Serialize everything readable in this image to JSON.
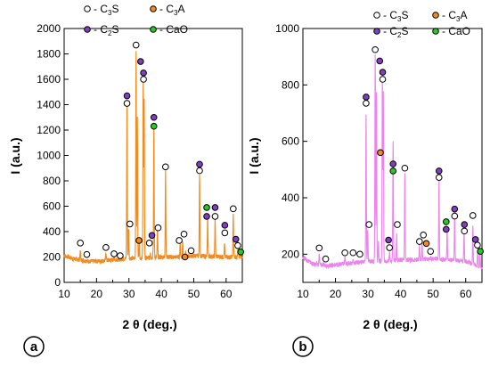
{
  "colors": {
    "panel_a_line": "#F28A1E",
    "panel_b_line": "#EE82EE",
    "C3S": "#ffffff",
    "C3A": "#F28A1E",
    "C2S": "#7F3FBF",
    "CaO": "#22CC22"
  },
  "legend": [
    {
      "key": "C3S",
      "main": "- C",
      "sub": "3",
      "tail": "S"
    },
    {
      "key": "C3A",
      "main": "- C",
      "sub": "3",
      "tail": "A"
    },
    {
      "key": "C2S",
      "main": "- C",
      "sub": "2",
      "tail": "S"
    },
    {
      "key": "CaO",
      "main": "- CaO",
      "sub": "",
      "tail": ""
    }
  ],
  "chart_data": [
    {
      "type": "line",
      "panel_label": "a",
      "xlabel": "2 θ (deg.)",
      "ylabel": "I (a.u.)",
      "xlim": [
        10,
        65
      ],
      "ylim": [
        0,
        2000
      ],
      "xticks": [
        10,
        20,
        30,
        40,
        50,
        60
      ],
      "yticks": [
        0,
        200,
        400,
        600,
        800,
        1000,
        1200,
        1400,
        1600,
        1800,
        2000
      ],
      "baseline": [
        [
          10,
          210
        ],
        [
          13,
          185
        ],
        [
          18,
          165
        ],
        [
          22,
          170
        ],
        [
          26,
          180
        ],
        [
          30,
          190
        ],
        [
          35,
          190
        ],
        [
          40,
          200
        ],
        [
          45,
          200
        ],
        [
          50,
          210
        ],
        [
          55,
          205
        ],
        [
          60,
          200
        ],
        [
          65,
          200
        ]
      ],
      "peaks": [
        [
          15.0,
          250
        ],
        [
          22.9,
          240
        ],
        [
          25.4,
          220
        ],
        [
          29.4,
          1400
        ],
        [
          29.9,
          430
        ],
        [
          32.2,
          1840
        ],
        [
          32.6,
          1300
        ],
        [
          33.2,
          330
        ],
        [
          34.4,
          1600
        ],
        [
          34.7,
          1450
        ],
        [
          36.6,
          240
        ],
        [
          37.4,
          240
        ],
        [
          37.7,
          1240
        ],
        [
          38.8,
          420
        ],
        [
          41.3,
          880
        ],
        [
          45.8,
          310
        ],
        [
          46.6,
          330
        ],
        [
          47.5,
          230
        ],
        [
          51.8,
          860
        ],
        [
          54.3,
          520
        ],
        [
          56.6,
          500
        ],
        [
          59.5,
          300
        ],
        [
          62.2,
          530
        ],
        [
          63.7,
          280
        ],
        [
          64.4,
          230
        ]
      ],
      "markers": [
        {
          "phase": "C3S",
          "x": 15.0,
          "y": 310
        },
        {
          "phase": "C3S",
          "x": 17.0,
          "y": 220
        },
        {
          "phase": "C3S",
          "x": 22.9,
          "y": 275
        },
        {
          "phase": "C3S",
          "x": 25.4,
          "y": 225
        },
        {
          "phase": "C3S",
          "x": 27.3,
          "y": 210
        },
        {
          "phase": "C2S",
          "x": 29.4,
          "y": 1470
        },
        {
          "phase": "C3S",
          "x": 29.4,
          "y": 1410
        },
        {
          "phase": "C3S",
          "x": 30.3,
          "y": 460
        },
        {
          "phase": "C3S",
          "x": 32.2,
          "y": 1870
        },
        {
          "phase": "C3A",
          "x": 33.1,
          "y": 330
        },
        {
          "phase": "C2S",
          "x": 33.6,
          "y": 1740
        },
        {
          "phase": "C2S",
          "x": 34.5,
          "y": 1650
        },
        {
          "phase": "C3S",
          "x": 34.5,
          "y": 1600
        },
        {
          "phase": "C3S",
          "x": 36.3,
          "y": 310
        },
        {
          "phase": "C2S",
          "x": 37.1,
          "y": 370
        },
        {
          "phase": "C2S",
          "x": 37.7,
          "y": 1300
        },
        {
          "phase": "CaO",
          "x": 37.7,
          "y": 1230
        },
        {
          "phase": "C3S",
          "x": 39.0,
          "y": 430
        },
        {
          "phase": "C3S",
          "x": 41.3,
          "y": 910
        },
        {
          "phase": "C3S",
          "x": 45.5,
          "y": 330
        },
        {
          "phase": "C3S",
          "x": 47.0,
          "y": 380
        },
        {
          "phase": "C3A",
          "x": 47.3,
          "y": 200
        },
        {
          "phase": "C3S",
          "x": 49.2,
          "y": 250
        },
        {
          "phase": "C2S",
          "x": 51.8,
          "y": 930
        },
        {
          "phase": "C3S",
          "x": 51.8,
          "y": 880
        },
        {
          "phase": "CaO",
          "x": 54.0,
          "y": 590
        },
        {
          "phase": "C2S",
          "x": 54.0,
          "y": 520
        },
        {
          "phase": "C2S",
          "x": 56.6,
          "y": 590
        },
        {
          "phase": "C3S",
          "x": 56.6,
          "y": 520
        },
        {
          "phase": "C2S",
          "x": 59.6,
          "y": 450
        },
        {
          "phase": "C3S",
          "x": 59.6,
          "y": 390
        },
        {
          "phase": "C3S",
          "x": 62.2,
          "y": 580
        },
        {
          "phase": "C2S",
          "x": 63.0,
          "y": 340
        },
        {
          "phase": "C3S",
          "x": 63.6,
          "y": 290
        },
        {
          "phase": "CaO",
          "x": 64.5,
          "y": 240
        }
      ]
    },
    {
      "type": "line",
      "panel_label": "b",
      "xlabel": "2 θ (deg.)",
      "ylabel": "I (a.u.)",
      "xlim": [
        10,
        65
      ],
      "ylim": [
        100,
        1000
      ],
      "xticks": [
        10,
        20,
        30,
        40,
        50,
        60
      ],
      "yticks": [
        200,
        400,
        600,
        800,
        1000
      ],
      "baseline": [
        [
          10,
          190
        ],
        [
          13,
          165
        ],
        [
          18,
          160
        ],
        [
          22,
          165
        ],
        [
          26,
          170
        ],
        [
          30,
          175
        ],
        [
          35,
          175
        ],
        [
          40,
          180
        ],
        [
          45,
          180
        ],
        [
          50,
          185
        ],
        [
          55,
          180
        ],
        [
          60,
          175
        ],
        [
          65,
          150
        ]
      ],
      "peaks": [
        [
          15.0,
          200
        ],
        [
          22.9,
          190
        ],
        [
          25.4,
          180
        ],
        [
          29.4,
          700
        ],
        [
          29.9,
          280
        ],
        [
          32.2,
          910
        ],
        [
          32.6,
          780
        ],
        [
          33.2,
          240
        ],
        [
          34.4,
          820
        ],
        [
          34.7,
          770
        ],
        [
          36.6,
          210
        ],
        [
          37.7,
          600
        ],
        [
          38.8,
          270
        ],
        [
          41.3,
          480
        ],
        [
          45.8,
          230
        ],
        [
          46.6,
          240
        ],
        [
          51.8,
          460
        ],
        [
          54.3,
          290
        ],
        [
          56.6,
          330
        ],
        [
          59.5,
          280
        ],
        [
          62.2,
          300
        ],
        [
          63.7,
          230
        ],
        [
          64.4,
          200
        ]
      ],
      "markers": [
        {
          "phase": "C3S",
          "x": 15.0,
          "y": 222
        },
        {
          "phase": "C3S",
          "x": 17.0,
          "y": 183
        },
        {
          "phase": "C3S",
          "x": 22.9,
          "y": 205
        },
        {
          "phase": "C3S",
          "x": 25.4,
          "y": 205
        },
        {
          "phase": "C3S",
          "x": 27.5,
          "y": 200
        },
        {
          "phase": "C2S",
          "x": 29.4,
          "y": 757
        },
        {
          "phase": "C3S",
          "x": 29.4,
          "y": 735
        },
        {
          "phase": "C3S",
          "x": 30.3,
          "y": 305
        },
        {
          "phase": "C3S",
          "x": 32.2,
          "y": 925
        },
        {
          "phase": "C2S",
          "x": 33.6,
          "y": 885
        },
        {
          "phase": "C2S",
          "x": 34.5,
          "y": 845
        },
        {
          "phase": "C3S",
          "x": 34.5,
          "y": 820
        },
        {
          "phase": "C3A",
          "x": 33.8,
          "y": 560
        },
        {
          "phase": "C2S",
          "x": 36.3,
          "y": 250
        },
        {
          "phase": "C3S",
          "x": 36.6,
          "y": 223
        },
        {
          "phase": "C2S",
          "x": 37.7,
          "y": 520
        },
        {
          "phase": "CaO",
          "x": 37.7,
          "y": 495
        },
        {
          "phase": "C3S",
          "x": 39.0,
          "y": 305
        },
        {
          "phase": "C3S",
          "x": 41.3,
          "y": 505
        },
        {
          "phase": "C3S",
          "x": 45.8,
          "y": 245
        },
        {
          "phase": "C3S",
          "x": 47.0,
          "y": 268
        },
        {
          "phase": "C3A",
          "x": 47.9,
          "y": 238
        },
        {
          "phase": "C3S",
          "x": 49.2,
          "y": 210
        },
        {
          "phase": "C2S",
          "x": 51.8,
          "y": 495
        },
        {
          "phase": "C3S",
          "x": 51.8,
          "y": 472
        },
        {
          "phase": "CaO",
          "x": 54.0,
          "y": 315
        },
        {
          "phase": "C2S",
          "x": 54.0,
          "y": 288
        },
        {
          "phase": "C2S",
          "x": 56.6,
          "y": 360
        },
        {
          "phase": "C3S",
          "x": 56.6,
          "y": 335
        },
        {
          "phase": "C2S",
          "x": 59.6,
          "y": 305
        },
        {
          "phase": "C3S",
          "x": 59.6,
          "y": 282
        },
        {
          "phase": "C3S",
          "x": 62.2,
          "y": 337
        },
        {
          "phase": "C2S",
          "x": 63.0,
          "y": 252
        },
        {
          "phase": "C3S",
          "x": 63.6,
          "y": 232
        },
        {
          "phase": "CaO",
          "x": 64.5,
          "y": 210
        }
      ]
    }
  ]
}
